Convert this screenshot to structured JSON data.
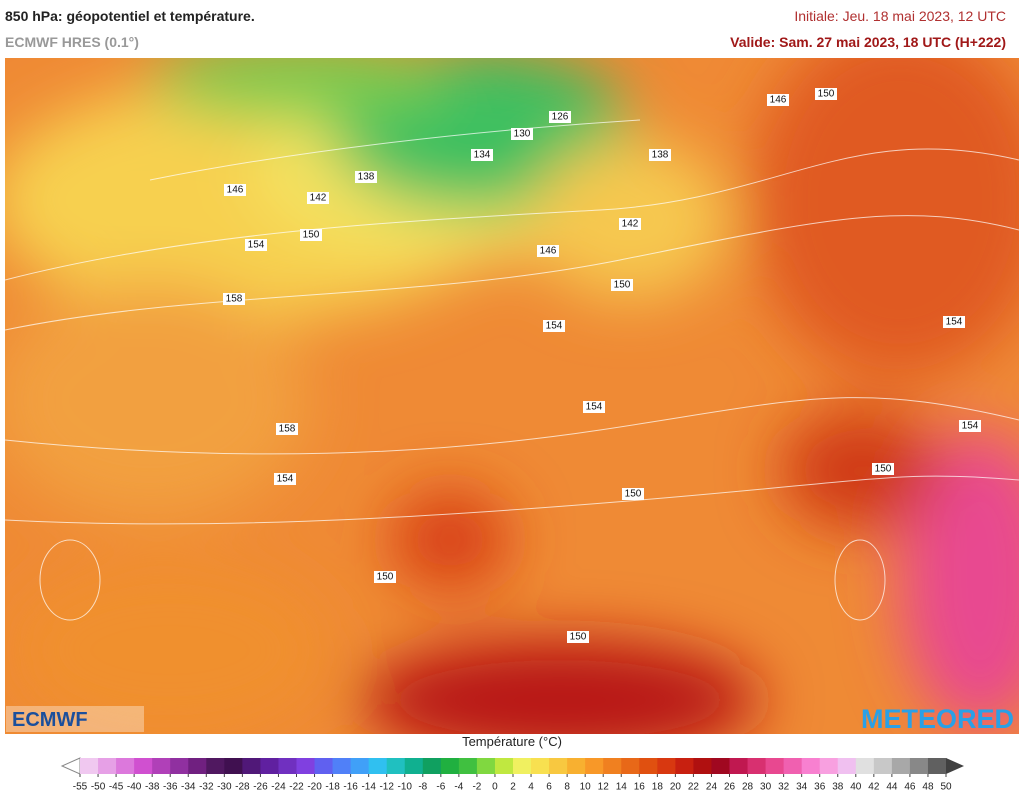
{
  "header": {
    "title": "850 hPa: géopotentiel et température.",
    "model": "ECMWF HRES (0.1°)",
    "initial": "Initiale: Jeu. 18 mai 2023, 12 UTC",
    "valid": "Valide: Sam. 27 mai 2023, 18 UTC (H+222)"
  },
  "map": {
    "contour_labels": [
      146,
      150,
      126,
      130,
      134,
      138,
      138,
      146,
      142,
      150,
      154,
      142,
      146,
      150,
      158,
      154,
      154,
      154,
      154,
      158,
      150,
      154,
      150,
      150,
      150
    ],
    "logo_left": "ECMWF",
    "logo_right": "METEORED"
  },
  "legend": {
    "title": "Température (°C)",
    "ticks": [
      -55,
      -50,
      -45,
      -40,
      -38,
      -36,
      -34,
      -32,
      -30,
      -28,
      -26,
      -24,
      -22,
      -20,
      -18,
      -16,
      -14,
      -12,
      -10,
      -8,
      -6,
      -4,
      -2,
      0,
      2,
      4,
      6,
      8,
      10,
      12,
      14,
      16,
      18,
      20,
      22,
      24,
      26,
      28,
      30,
      32,
      34,
      36,
      38,
      40,
      42,
      44,
      46,
      48,
      50
    ],
    "colors": [
      "#f0c8f0",
      "#e6a0e6",
      "#dc78dc",
      "#d050d0",
      "#b040b8",
      "#9030a0",
      "#702080",
      "#501860",
      "#401050",
      "#501878",
      "#6020a0",
      "#7030c0",
      "#8040e0",
      "#6060f0",
      "#5080f8",
      "#40a0f8",
      "#30c0f0",
      "#20c0c0",
      "#10b090",
      "#10a060",
      "#20b040",
      "#40c040",
      "#80d840",
      "#c0e840",
      "#f0f060",
      "#f8e050",
      "#f8c840",
      "#f8b030",
      "#f89828",
      "#f08020",
      "#e86818",
      "#e05010",
      "#d83810",
      "#c82010",
      "#b01010",
      "#a00820",
      "#c01850",
      "#d83070",
      "#e84890",
      "#f060b0",
      "#f880d0",
      "#f8a0e0",
      "#f0c0f0",
      "#e0e0e0",
      "#c8c8c8",
      "#a8a8a8",
      "#888888",
      "#606060"
    ],
    "low_color": "#ffffff",
    "high_color": "#404040"
  }
}
